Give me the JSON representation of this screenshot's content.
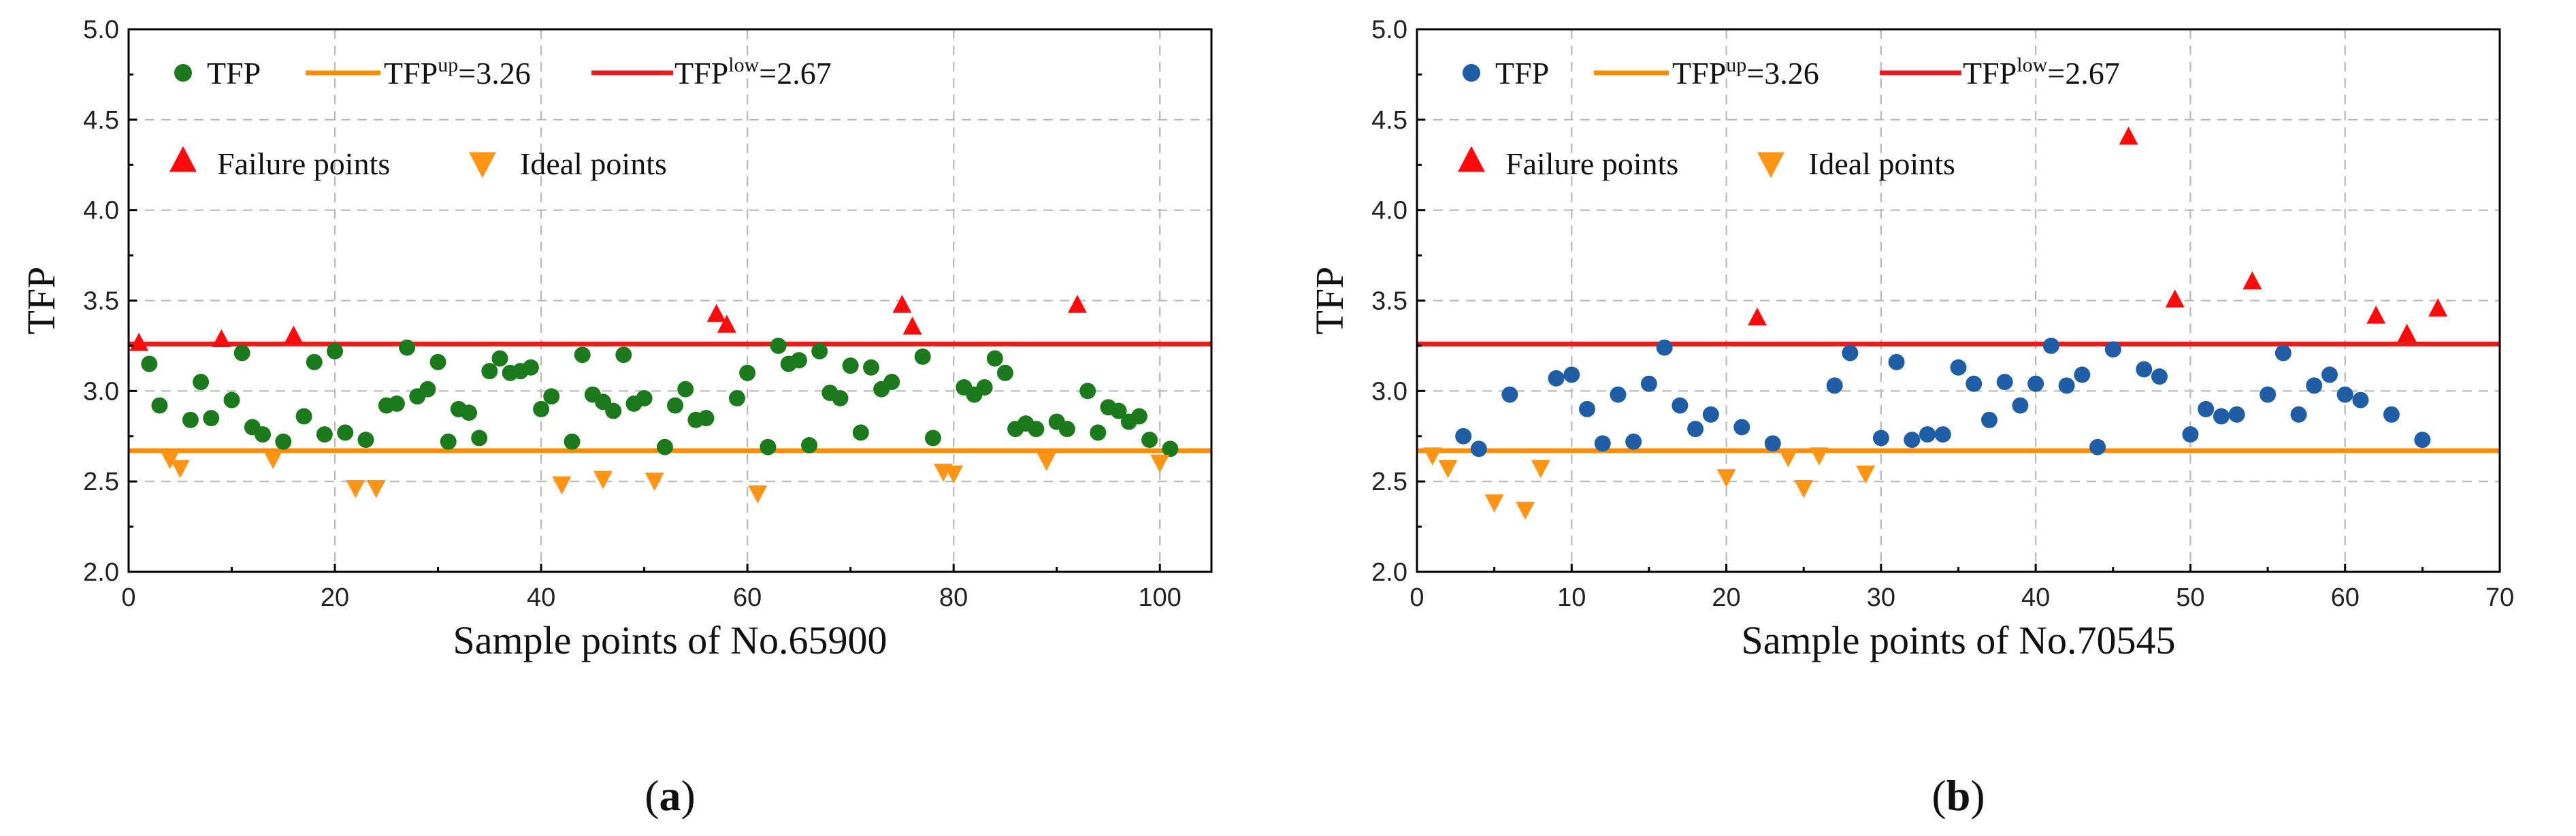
{
  "colors": {
    "upper_line": "#e51d1d",
    "lower_line": "#ff8c00",
    "failure": "#ff0a0a",
    "ideal": "#ff9415",
    "grid": "#b9b9b9"
  },
  "chart_data": [
    {
      "type": "scatter",
      "panel": "a",
      "panel_label_open": "(",
      "panel_label_letter": "a",
      "panel_label_close": ")",
      "xlabel": "Sample points of No.65900",
      "ylabel": "TFP",
      "xlim": [
        0,
        105
      ],
      "ylim": [
        2.0,
        5.0
      ],
      "xticks": [
        0,
        20,
        40,
        60,
        80,
        100
      ],
      "xtick_labels": [
        "0",
        "20",
        "40",
        "60",
        "80",
        "100"
      ],
      "yticks": [
        2.0,
        2.5,
        3.0,
        3.5,
        4.0,
        4.5,
        5.0
      ],
      "ytick_labels": [
        "2.0",
        "2.5",
        "3.0",
        "3.5",
        "4.0",
        "4.5",
        "5.0"
      ],
      "grid": true,
      "point_color": "#1b7a1b",
      "legend": {
        "tfp": "TFP",
        "up_base": "TFP",
        "up_sup": "up",
        "up_value": "=3.26",
        "low_base": "TFP",
        "low_sup": "low",
        "low_value": "=2.67",
        "failure": "Failure points",
        "ideal": "Ideal points"
      },
      "upper_threshold": 3.26,
      "lower_threshold": 2.67,
      "series": [
        {
          "name": "TFP",
          "x": [
            2,
            3,
            6,
            7,
            8,
            10,
            11,
            12,
            13,
            15,
            17,
            18,
            19,
            20,
            21,
            23,
            25,
            26,
            27,
            28,
            29,
            30,
            31,
            32,
            33,
            34,
            35,
            36,
            37,
            38,
            39,
            40,
            41,
            43,
            44,
            45,
            46,
            47,
            48,
            49,
            50,
            52,
            53,
            54,
            55,
            56,
            59,
            60,
            62,
            63,
            64,
            65,
            66,
            67,
            68,
            69,
            70,
            71,
            72,
            73,
            74,
            77,
            78,
            81,
            82,
            83,
            84,
            85,
            86,
            87,
            88,
            90,
            91,
            93,
            94,
            95,
            96,
            97,
            98,
            99,
            101
          ],
          "y": [
            3.15,
            2.92,
            2.84,
            3.05,
            2.85,
            2.95,
            3.21,
            2.8,
            2.76,
            2.72,
            2.86,
            3.16,
            2.76,
            3.22,
            2.77,
            2.73,
            2.92,
            2.93,
            3.24,
            2.97,
            3.01,
            3.16,
            2.72,
            2.9,
            2.88,
            2.74,
            3.11,
            3.18,
            3.1,
            3.11,
            3.13,
            2.9,
            2.97,
            2.72,
            3.2,
            2.98,
            2.94,
            2.89,
            3.2,
            2.93,
            2.96,
            2.69,
            2.92,
            3.01,
            2.84,
            2.85,
            2.96,
            3.1,
            2.69,
            3.25,
            3.15,
            3.17,
            2.7,
            3.22,
            2.99,
            2.96,
            3.14,
            2.77,
            3.13,
            3.01,
            3.05,
            3.19,
            2.74,
            3.02,
            2.98,
            3.02,
            3.18,
            3.1,
            2.79,
            2.82,
            2.79,
            2.83,
            2.79,
            3.0,
            2.77,
            2.91,
            2.89,
            2.83,
            2.86,
            2.73,
            2.68
          ]
        },
        {
          "name": "Failure points",
          "x": [
            1,
            9,
            16,
            57,
            58,
            75,
            76,
            92
          ],
          "y": [
            3.26,
            3.28,
            3.3,
            3.42,
            3.36,
            3.47,
            3.35,
            3.47
          ]
        },
        {
          "name": "Ideal points",
          "x": [
            4,
            5,
            14,
            22,
            24,
            42,
            46,
            51,
            61,
            79,
            80,
            89,
            100
          ],
          "y": [
            2.63,
            2.58,
            2.63,
            2.47,
            2.47,
            2.49,
            2.52,
            2.51,
            2.44,
            2.56,
            2.55,
            2.62,
            2.61
          ]
        }
      ]
    },
    {
      "type": "scatter",
      "panel": "b",
      "panel_label_open": "(",
      "panel_label_letter": "b",
      "panel_label_close": ")",
      "xlabel": "Sample points of No.70545",
      "ylabel": "TFP",
      "xlim": [
        0,
        70
      ],
      "ylim": [
        2.0,
        5.0
      ],
      "xticks": [
        0,
        10,
        20,
        30,
        40,
        50,
        60,
        70
      ],
      "xtick_labels": [
        "0",
        "10",
        "20",
        "30",
        "40",
        "50",
        "60",
        "70"
      ],
      "yticks": [
        2.0,
        2.5,
        3.0,
        3.5,
        4.0,
        4.5,
        5.0
      ],
      "ytick_labels": [
        "2.0",
        "2.5",
        "3.0",
        "3.5",
        "4.0",
        "4.5",
        "5.0"
      ],
      "grid": true,
      "point_color": "#1f5ea6",
      "legend": {
        "tfp": "TFP",
        "up_base": "TFP",
        "up_sup": "up",
        "up_value": "=3.26",
        "low_base": "TFP",
        "low_sup": "low",
        "low_value": "=2.67",
        "failure": "Failure points",
        "ideal": "Ideal points"
      },
      "upper_threshold": 3.26,
      "lower_threshold": 2.67,
      "series": [
        {
          "name": "TFP",
          "x": [
            3,
            4,
            6,
            9,
            10,
            11,
            12,
            13,
            14,
            15,
            16,
            17,
            18,
            19,
            21,
            23,
            27,
            28,
            30,
            31,
            32,
            33,
            34,
            35,
            36,
            37,
            38,
            39,
            40,
            41,
            42,
            43,
            44,
            45,
            47,
            48,
            50,
            51,
            52,
            53,
            55,
            56,
            57,
            58,
            59,
            60,
            61,
            63,
            65
          ],
          "y": [
            2.75,
            2.68,
            2.98,
            3.07,
            3.09,
            2.9,
            2.71,
            2.98,
            2.72,
            3.04,
            3.24,
            2.92,
            2.79,
            2.87,
            2.8,
            2.71,
            3.03,
            3.21,
            2.74,
            3.16,
            2.73,
            2.76,
            2.76,
            3.13,
            3.04,
            2.84,
            3.05,
            2.92,
            3.04,
            3.25,
            3.03,
            3.09,
            2.69,
            3.23,
            3.12,
            3.08,
            2.76,
            2.9,
            2.86,
            2.87,
            2.98,
            3.21,
            2.87,
            3.03,
            3.09,
            2.98,
            2.95,
            2.87,
            2.73
          ]
        },
        {
          "name": "Failure points",
          "x": [
            22,
            46,
            49,
            54,
            62,
            64,
            66
          ],
          "y": [
            3.4,
            4.4,
            3.5,
            3.6,
            3.41,
            3.31,
            3.45
          ]
        },
        {
          "name": "Ideal points",
          "x": [
            1,
            2,
            5,
            7,
            8,
            20,
            24,
            25,
            26,
            29
          ],
          "y": [
            2.65,
            2.58,
            2.39,
            2.35,
            2.58,
            2.53,
            2.64,
            2.47,
            2.65,
            2.55
          ]
        }
      ]
    }
  ]
}
